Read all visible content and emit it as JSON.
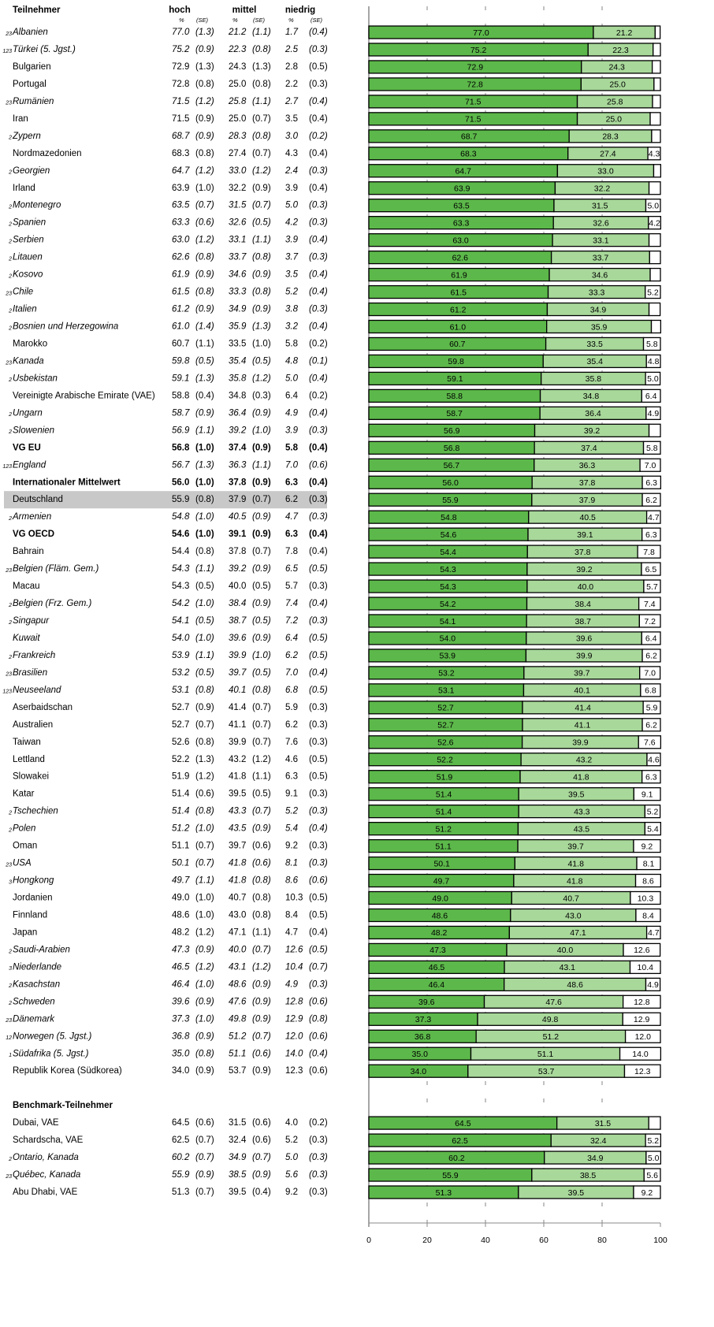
{
  "header": {
    "pct": "%",
    "se": "(SE)"
  },
  "chart_data": [
    {
      "type": "stacked-bar",
      "title": "Teilnehmer",
      "categories": [
        "Albanien",
        "Türkei (5. Jgst.)",
        "Bulgarien",
        "Portugal",
        "Rumänien",
        "Iran",
        "Zypern",
        "Nordmazedonien",
        "Georgien",
        "Irland",
        "Montenegro",
        "Spanien",
        "Serbien",
        "Litauen",
        "Kosovo",
        "Chile",
        "Italien",
        "Bosnien und Herzegowina",
        "Marokko",
        "Kanada",
        "Usbekistan",
        "Vereinigte Arabische Emirate (VAE)",
        "Ungarn",
        "Slowenien",
        "VG EU",
        "England",
        "Internationaler Mittelwert",
        "Deutschland",
        "Armenien",
        "VG OECD",
        "Bahrain",
        "Belgien (Fläm. Gem.)",
        "Macau",
        "Belgien (Frz. Gem.)",
        "Singapur",
        "Kuwait",
        "Frankreich",
        "Brasilien",
        "Neuseeland",
        "Aserbaidschan",
        "Australien",
        "Taiwan",
        "Lettland",
        "Slowakei",
        "Katar",
        "Tschechien",
        "Polen",
        "Oman",
        "USA",
        "Hongkong",
        "Jordanien",
        "Finnland",
        "Japan",
        "Saudi-Arabien",
        "Niederlande",
        "Kasachstan",
        "Schweden",
        "Dänemark",
        "Norwegen (5. Jgst.)",
        "Südafrika (5. Jgst.)",
        "Republik Korea (Südkorea)"
      ],
      "notes": [
        "23",
        "123",
        null,
        null,
        "23",
        null,
        "2",
        null,
        "2",
        null,
        "2",
        "2",
        "2",
        "2",
        "2",
        "23",
        "2",
        "2",
        null,
        "23",
        "2",
        null,
        "2",
        "2",
        null,
        "123",
        null,
        null,
        "2",
        null,
        null,
        "23",
        null,
        "2",
        "2",
        null,
        "2",
        "23",
        "123",
        null,
        null,
        null,
        null,
        null,
        null,
        "2",
        "2",
        null,
        "23",
        "3",
        null,
        null,
        null,
        "2",
        "3",
        "2",
        "2",
        "23",
        "12",
        "1",
        null
      ],
      "styles": [
        "italic",
        "italic",
        "normal",
        "normal",
        "italic",
        "normal",
        "italic",
        "normal",
        "italic",
        "normal",
        "italic",
        "italic",
        "italic",
        "italic",
        "italic",
        "italic",
        "italic",
        "italic",
        "normal",
        "italic",
        "italic",
        "normal",
        "italic",
        "italic",
        "bold",
        "italic",
        "bold",
        "highlight",
        "italic",
        "bold",
        "normal",
        "italic",
        "normal",
        "italic",
        "italic",
        "italic",
        "italic",
        "italic",
        "italic",
        "normal",
        "normal",
        "normal",
        "normal",
        "normal",
        "normal",
        "italic",
        "italic",
        "normal",
        "italic",
        "italic",
        "normal",
        "normal",
        "normal",
        "italic",
        "italic",
        "italic",
        "italic",
        "italic",
        "italic",
        "italic",
        "normal"
      ],
      "xlim": [
        0,
        100
      ],
      "xticks": [
        0,
        20,
        40,
        60,
        80,
        100
      ],
      "grid": true,
      "series": [
        {
          "name": "hoch",
          "color": "#5cb84a",
          "values": [
            77.0,
            75.2,
            72.9,
            72.8,
            71.5,
            71.5,
            68.7,
            68.3,
            64.7,
            63.9,
            63.5,
            63.3,
            63.0,
            62.6,
            61.9,
            61.5,
            61.2,
            61.0,
            60.7,
            59.8,
            59.1,
            58.8,
            58.7,
            56.9,
            56.8,
            56.7,
            56.0,
            55.9,
            54.8,
            54.6,
            54.4,
            54.3,
            54.3,
            54.2,
            54.1,
            54.0,
            53.9,
            53.2,
            53.1,
            52.7,
            52.7,
            52.6,
            52.2,
            51.9,
            51.4,
            51.4,
            51.2,
            51.1,
            50.1,
            49.7,
            49.0,
            48.6,
            48.2,
            47.3,
            46.5,
            46.4,
            39.6,
            37.3,
            36.8,
            35.0,
            34.0
          ],
          "value_labels": [
            "77.0",
            "75.2",
            "72.9",
            "72.8",
            "71.5",
            "71.5",
            "68.7",
            "68.3",
            "64.7",
            "63.9",
            "63.5",
            "63.3",
            "63.0",
            "62.6",
            "61.9",
            "61.5",
            "61.2",
            "61.0",
            "60.7",
            "59.8",
            "59.1",
            "58.8",
            "58.7",
            "56.9",
            "56.8",
            "56.7",
            "56.0",
            "55.9",
            "54.8",
            "54.6",
            "54.4",
            "54.3",
            "54.3",
            "54.2",
            "54.1",
            "54.0",
            "53.9",
            "53.2",
            "53.1",
            "52.7",
            "52.7",
            "52.6",
            "52.2",
            "51.9",
            "51.4",
            "51.4",
            "51.2",
            "51.1",
            "50.1",
            "49.7",
            "49.0",
            "48.6",
            "48.2",
            "47.3",
            "46.5",
            "46.4",
            "39.6",
            "37.3",
            "36.8",
            "35.0",
            "34.0"
          ],
          "se": [
            "(1.3)",
            "(0.9)",
            "(1.3)",
            "(0.8)",
            "(1.2)",
            "(0.9)",
            "(0.9)",
            "(0.8)",
            "(1.2)",
            "(1.0)",
            "(0.7)",
            "(0.6)",
            "(1.2)",
            "(0.8)",
            "(0.9)",
            "(0.8)",
            "(0.9)",
            "(1.4)",
            "(1.1)",
            "(0.5)",
            "(1.3)",
            "(0.4)",
            "(0.9)",
            "(1.1)",
            "(1.0)",
            "(1.3)",
            "(1.0)",
            "(0.8)",
            "(1.0)",
            "(1.0)",
            "(0.8)",
            "(1.1)",
            "(0.5)",
            "(1.0)",
            "(0.5)",
            "(1.0)",
            "(1.1)",
            "(0.5)",
            "(0.8)",
            "(0.9)",
            "(0.7)",
            "(0.8)",
            "(1.3)",
            "(1.2)",
            "(0.6)",
            "(0.8)",
            "(1.0)",
            "(0.7)",
            "(0.7)",
            "(1.1)",
            "(1.0)",
            "(1.0)",
            "(1.2)",
            "(0.9)",
            "(1.2)",
            "(1.0)",
            "(0.9)",
            "(1.0)",
            "(0.9)",
            "(0.8)",
            "(0.9)"
          ]
        },
        {
          "name": "mittel",
          "color": "#a8d89a",
          "values": [
            21.2,
            22.3,
            24.3,
            25.0,
            25.8,
            25.0,
            28.3,
            27.4,
            33.0,
            32.2,
            31.5,
            32.6,
            33.1,
            33.7,
            34.6,
            33.3,
            34.9,
            35.9,
            33.5,
            35.4,
            35.8,
            34.8,
            36.4,
            39.2,
            37.4,
            36.3,
            37.8,
            37.9,
            40.5,
            39.1,
            37.8,
            39.2,
            40.0,
            38.4,
            38.7,
            39.6,
            39.9,
            39.7,
            40.1,
            41.4,
            41.1,
            39.9,
            43.2,
            41.8,
            39.5,
            43.3,
            43.5,
            39.7,
            41.8,
            41.8,
            40.7,
            43.0,
            47.1,
            40.0,
            43.1,
            48.6,
            47.6,
            49.8,
            51.2,
            51.1,
            53.7
          ],
          "value_labels": [
            "21.2",
            "22.3",
            "24.3",
            "25.0",
            "25.8",
            "25.0",
            "28.3",
            "27.4",
            "33.0",
            "32.2",
            "31.5",
            "32.6",
            "33.1",
            "33.7",
            "34.6",
            "33.3",
            "34.9",
            "35.9",
            "33.5",
            "35.4",
            "35.8",
            "34.8",
            "36.4",
            "39.2",
            "37.4",
            "36.3",
            "37.8",
            "37.9",
            "40.5",
            "39.1",
            "37.8",
            "39.2",
            "40.0",
            "38.4",
            "38.7",
            "39.6",
            "39.9",
            "39.7",
            "40.1",
            "41.4",
            "41.1",
            "39.9",
            "43.2",
            "41.8",
            "39.5",
            "43.3",
            "43.5",
            "39.7",
            "41.8",
            "41.8",
            "40.7",
            "43.0",
            "47.1",
            "40.0",
            "43.1",
            "48.6",
            "47.6",
            "49.8",
            "51.2",
            "51.1",
            "53.7"
          ],
          "se": [
            "(1.1)",
            "(0.8)",
            "(1.3)",
            "(0.8)",
            "(1.1)",
            "(0.7)",
            "(0.8)",
            "(0.7)",
            "(1.2)",
            "(0.9)",
            "(0.7)",
            "(0.5)",
            "(1.1)",
            "(0.8)",
            "(0.9)",
            "(0.8)",
            "(0.9)",
            "(1.3)",
            "(1.0)",
            "(0.5)",
            "(1.2)",
            "(0.3)",
            "(0.9)",
            "(1.0)",
            "(0.9)",
            "(1.1)",
            "(0.9)",
            "(0.7)",
            "(0.9)",
            "(0.9)",
            "(0.7)",
            "(0.9)",
            "(0.5)",
            "(0.9)",
            "(0.5)",
            "(0.9)",
            "(1.0)",
            "(0.5)",
            "(0.8)",
            "(0.7)",
            "(0.7)",
            "(0.7)",
            "(1.2)",
            "(1.1)",
            "(0.5)",
            "(0.7)",
            "(0.9)",
            "(0.6)",
            "(0.6)",
            "(0.8)",
            "(0.8)",
            "(0.8)",
            "(1.1)",
            "(0.7)",
            "(1.2)",
            "(0.9)",
            "(0.9)",
            "(0.9)",
            "(0.7)",
            "(0.6)",
            "(0.9)"
          ]
        },
        {
          "name": "niedrig",
          "color": "#ffffff",
          "values": [
            1.7,
            2.5,
            2.8,
            2.2,
            2.7,
            3.5,
            3.0,
            4.3,
            2.4,
            3.9,
            5.0,
            4.2,
            3.9,
            3.7,
            3.5,
            5.2,
            3.8,
            3.2,
            5.8,
            4.8,
            5.0,
            6.4,
            4.9,
            3.9,
            5.8,
            7.0,
            6.3,
            6.2,
            4.7,
            6.3,
            7.8,
            6.5,
            5.7,
            7.4,
            7.2,
            6.4,
            6.2,
            7.0,
            6.8,
            5.9,
            6.2,
            7.6,
            4.6,
            6.3,
            9.1,
            5.2,
            5.4,
            9.2,
            8.1,
            8.6,
            10.3,
            8.4,
            4.7,
            12.6,
            10.4,
            4.9,
            12.8,
            12.9,
            12.0,
            14.0,
            12.3
          ],
          "value_labels": [
            "1.7",
            "2.5",
            "2.8",
            "2.2",
            "2.7",
            "3.5",
            "3.0",
            "4.3",
            "2.4",
            "3.9",
            "5.0",
            "4.2",
            "3.9",
            "3.7",
            "3.5",
            "5.2",
            "3.8",
            "3.2",
            "5.8",
            "4.8",
            "5.0",
            "6.4",
            "4.9",
            "3.9",
            "5.8",
            "7.0",
            "6.3",
            "6.2",
            "4.7",
            "6.3",
            "7.8",
            "6.5",
            "5.7",
            "7.4",
            "7.2",
            "6.4",
            "6.2",
            "7.0",
            "6.8",
            "5.9",
            "6.2",
            "7.6",
            "4.6",
            "6.3",
            "9.1",
            "5.2",
            "5.4",
            "9.2",
            "8.1",
            "8.6",
            "10.3",
            "8.4",
            "4.7",
            "12.6",
            "10.4",
            "4.9",
            "12.8",
            "12.9",
            "12.0",
            "14.0",
            "12.3"
          ],
          "se": [
            "(0.4)",
            "(0.3)",
            "(0.5)",
            "(0.3)",
            "(0.4)",
            "(0.4)",
            "(0.2)",
            "(0.4)",
            "(0.3)",
            "(0.4)",
            "(0.3)",
            "(0.3)",
            "(0.4)",
            "(0.3)",
            "(0.4)",
            "(0.4)",
            "(0.3)",
            "(0.4)",
            "(0.2)",
            "(0.1)",
            "(0.4)",
            "(0.2)",
            "(0.4)",
            "(0.3)",
            "(0.4)",
            "(0.6)",
            "(0.4)",
            "(0.3)",
            "(0.3)",
            "(0.4)",
            "(0.4)",
            "(0.5)",
            "(0.3)",
            "(0.4)",
            "(0.3)",
            "(0.5)",
            "(0.5)",
            "(0.4)",
            "(0.5)",
            "(0.3)",
            "(0.3)",
            "(0.3)",
            "(0.5)",
            "(0.5)",
            "(0.3)",
            "(0.3)",
            "(0.4)",
            "(0.3)",
            "(0.3)",
            "(0.6)",
            "(0.5)",
            "(0.5)",
            "(0.4)",
            "(0.5)",
            "(0.7)",
            "(0.3)",
            "(0.6)",
            "(0.8)",
            "(0.6)",
            "(0.4)",
            "(0.6)"
          ]
        }
      ]
    },
    {
      "type": "stacked-bar",
      "title": "Benchmark-Teilnehmer",
      "categories": [
        "Dubai, VAE",
        "Schardscha, VAE",
        "Ontario, Kanada",
        "Québec, Kanada",
        "Abu Dhabi, VAE"
      ],
      "notes": [
        null,
        null,
        "2",
        "23",
        null
      ],
      "styles": [
        "normal",
        "normal",
        "italic",
        "italic",
        "normal"
      ],
      "series": [
        {
          "color": "#5cb84a",
          "values": [
            64.5,
            62.5,
            60.2,
            55.9,
            51.3
          ],
          "value_labels": [
            "64.5",
            "62.5",
            "60.2",
            "55.9",
            "51.3"
          ],
          "se": [
            "(0.6)",
            "(0.7)",
            "(0.7)",
            "(0.9)",
            "(0.7)"
          ]
        },
        {
          "color": "#a8d89a",
          "values": [
            31.5,
            32.4,
            34.9,
            38.5,
            39.5
          ],
          "value_labels": [
            "31.5",
            "32.4",
            "34.9",
            "38.5",
            "39.5"
          ],
          "se": [
            "(0.6)",
            "(0.6)",
            "(0.7)",
            "(0.9)",
            "(0.4)"
          ]
        },
        {
          "color": "#ffffff",
          "values": [
            4.0,
            5.2,
            5.0,
            5.6,
            9.2
          ],
          "value_labels": [
            "4.0",
            "5.2",
            "5.0",
            "5.6",
            "9.2"
          ],
          "se": [
            "(0.2)",
            "(0.3)",
            "(0.3)",
            "(0.3)",
            "(0.3)"
          ]
        }
      ]
    }
  ]
}
